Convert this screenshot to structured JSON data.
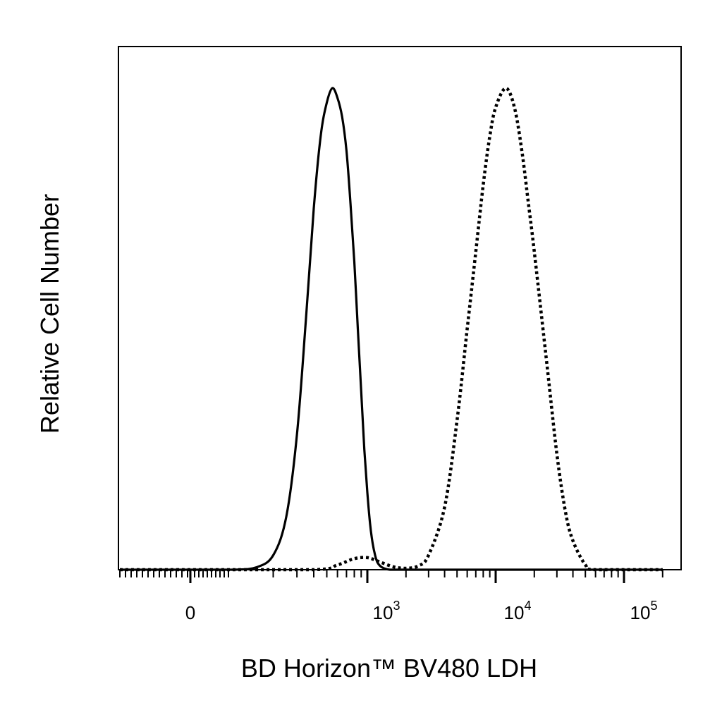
{
  "chart_data": {
    "type": "line",
    "title": "",
    "xlabel": "BD Horizon™ BV480  LDH",
    "ylabel": "Relative Cell Number",
    "x_scale": "biexponential",
    "xlim": [
      -600,
      200000
    ],
    "ylim": [
      0,
      100
    ],
    "grid": false,
    "legend": "none",
    "x_ticks": [
      {
        "value": 0,
        "label": "0",
        "exp": ""
      },
      {
        "value": 1000,
        "label": "10",
        "exp": "3"
      },
      {
        "value": 10000,
        "label": "10",
        "exp": "4"
      },
      {
        "value": 100000,
        "label": "10",
        "exp": "5"
      }
    ],
    "series": [
      {
        "style": "solid",
        "color": "#000000",
        "x": [
          0,
          100,
          150,
          200,
          250,
          300,
          350,
          400,
          450,
          500,
          550,
          600,
          650,
          700,
          750,
          800,
          850,
          900,
          950,
          1000,
          1050,
          1100,
          1150,
          1200,
          1300,
          1500,
          2000,
          5000,
          200000
        ],
        "y": [
          0,
          0,
          0.5,
          3,
          11,
          28,
          52,
          75,
          90,
          97,
          100,
          98,
          94,
          87,
          76,
          64,
          50,
          37,
          25,
          16,
          9.5,
          5.5,
          3,
          1.5,
          0.5,
          0,
          0,
          0,
          0
        ]
      },
      {
        "style": "dotted",
        "color": "#000000",
        "x": [
          0,
          400,
          600,
          800,
          1000,
          1200,
          1600,
          2000,
          2500,
          3000,
          4000,
          5000,
          6000,
          7000,
          8000,
          9000,
          10000,
          12000,
          14000,
          16000,
          18000,
          20000,
          25000,
          30000,
          35000,
          40000,
          50000,
          60000,
          200000
        ],
        "y": [
          0,
          0,
          1,
          2.3,
          2.5,
          1.8,
          0.6,
          0.3,
          0.8,
          3,
          13,
          31,
          50,
          66,
          80,
          90,
          96,
          100,
          96,
          87,
          76,
          66,
          43,
          24,
          12,
          6,
          1,
          0,
          0
        ]
      }
    ]
  }
}
